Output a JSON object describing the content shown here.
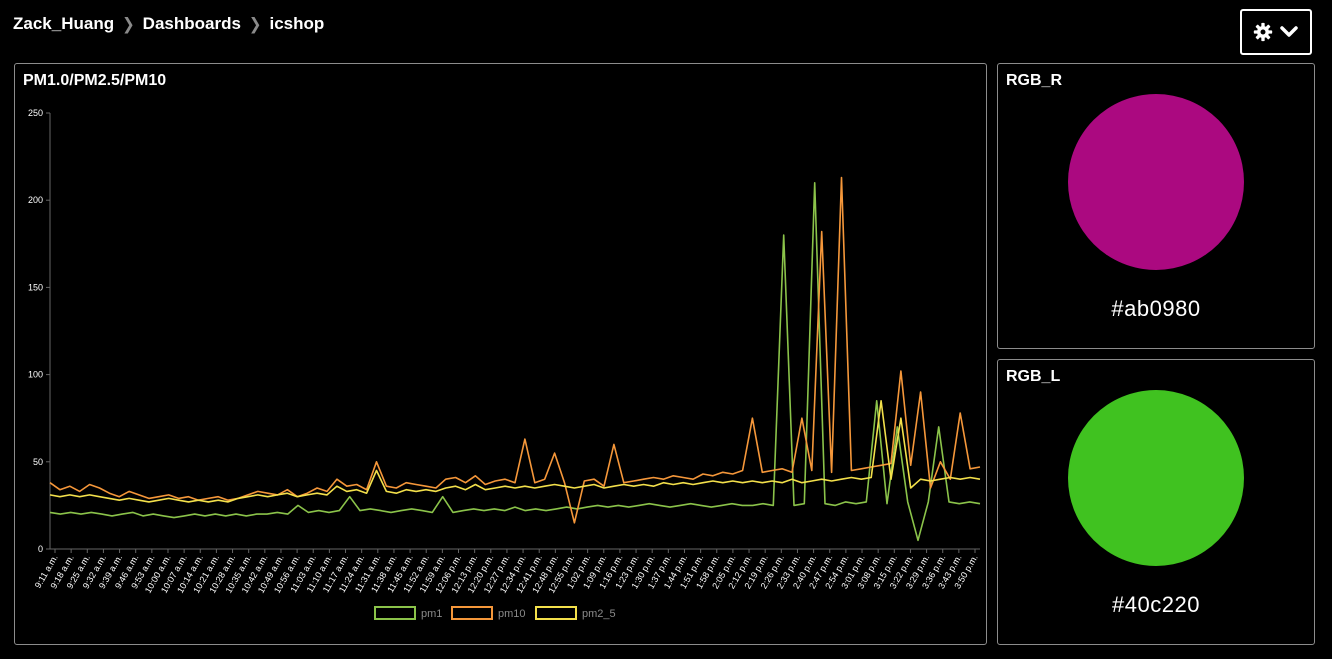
{
  "breadcrumb": {
    "items": [
      "Zack_Huang",
      "Dashboards",
      "icshop"
    ]
  },
  "header": {
    "settings_icon": "gear-icon",
    "dropdown_icon": "chevron-down-icon"
  },
  "widgets": {
    "chart": {
      "title": "PM1.0/PM2.5/PM10"
    },
    "rgb_r": {
      "title": "RGB_R",
      "value": "#ab0980",
      "color": "#ab0980"
    },
    "rgb_l": {
      "title": "RGB_L",
      "value": "#40c220",
      "color": "#40c220"
    }
  },
  "chart_data": {
    "type": "line",
    "title": "PM1.0/PM2.5/PM10",
    "ylim": [
      0,
      250
    ],
    "yticks": [
      0,
      50,
      100,
      150,
      200,
      250
    ],
    "grid": false,
    "legend_position": "bottom",
    "x_tick_labels": [
      "9:11 a.m.",
      "9:18 a.m.",
      "9:25 a.m.",
      "9:32 a.m.",
      "9:39 a.m.",
      "9:46 a.m.",
      "9:53 a.m.",
      "10:00 a.m.",
      "10:07 a.m.",
      "10:14 a.m.",
      "10:21 a.m.",
      "10:28 a.m.",
      "10:35 a.m.",
      "10:42 a.m.",
      "10:49 a.m.",
      "10:56 a.m.",
      "11:03 a.m.",
      "11:10 a.m.",
      "11:17 a.m.",
      "11:24 a.m.",
      "11:31 a.m.",
      "11:38 a.m.",
      "11:45 a.m.",
      "11:52 a.m.",
      "11:59 a.m.",
      "12:06 p.m.",
      "12:13 p.m.",
      "12:20 p.m.",
      "12:27 p.m.",
      "12:34 p.m.",
      "12:41 p.m.",
      "12:48 p.m.",
      "12:55 p.m.",
      "1:02 p.m.",
      "1:09 p.m.",
      "1:16 p.m.",
      "1:23 p.m.",
      "1:30 p.m.",
      "1:37 p.m.",
      "1:44 p.m.",
      "1:51 p.m.",
      "1:58 p.m.",
      "2:05 p.m.",
      "2:12 p.m.",
      "2:19 p.m.",
      "2:26 p.m.",
      "2:33 p.m.",
      "2:40 p.m.",
      "2:47 p.m.",
      "2:54 p.m.",
      "3:01 p.m.",
      "3:08 p.m.",
      "3:15 p.m.",
      "3:22 p.m.",
      "3:29 p.m.",
      "3:36 p.m.",
      "3:43 p.m.",
      "3:50 p.m."
    ],
    "series": [
      {
        "name": "pm1",
        "color": "#8bc34a",
        "values": [
          21,
          20,
          21,
          20,
          21,
          20,
          19,
          20,
          21,
          19,
          20,
          19,
          18,
          19,
          20,
          19,
          20,
          19,
          20,
          19,
          20,
          20,
          21,
          20,
          25,
          21,
          22,
          21,
          22,
          30,
          22,
          23,
          22,
          21,
          22,
          23,
          22,
          21,
          30,
          21,
          22,
          23,
          22,
          23,
          22,
          24,
          22,
          23,
          22,
          23,
          24,
          23,
          24,
          25,
          24,
          25,
          24,
          25,
          26,
          25,
          24,
          25,
          26,
          25,
          24,
          25,
          26,
          25,
          25,
          26,
          25,
          180,
          25,
          26,
          210,
          26,
          25,
          27,
          26,
          27,
          85,
          26,
          70,
          27,
          5,
          27,
          70,
          27,
          26,
          27,
          26
        ]
      },
      {
        "name": "pm10",
        "color": "#f5973a",
        "values": [
          38,
          34,
          36,
          33,
          37,
          35,
          32,
          30,
          33,
          31,
          29,
          30,
          31,
          29,
          30,
          28,
          29,
          30,
          28,
          29,
          31,
          33,
          32,
          31,
          34,
          30,
          32,
          35,
          33,
          40,
          36,
          37,
          34,
          50,
          36,
          35,
          38,
          37,
          36,
          35,
          40,
          41,
          38,
          42,
          37,
          39,
          40,
          38,
          63,
          38,
          40,
          55,
          38,
          15,
          39,
          40,
          36,
          60,
          38,
          39,
          40,
          41,
          40,
          42,
          41,
          40,
          43,
          42,
          44,
          43,
          45,
          75,
          44,
          45,
          46,
          44,
          75,
          45,
          182,
          44,
          213,
          45,
          46,
          47,
          48,
          49,
          102,
          48,
          90,
          35,
          50,
          40,
          78,
          46,
          47
        ]
      },
      {
        "name": "pm2_5",
        "color": "#f3e04b",
        "values": [
          31,
          30,
          31,
          30,
          31,
          30,
          29,
          28,
          29,
          28,
          27,
          28,
          29,
          28,
          27,
          28,
          27,
          28,
          27,
          29,
          30,
          31,
          30,
          31,
          32,
          30,
          31,
          32,
          31,
          36,
          33,
          34,
          32,
          45,
          33,
          32,
          34,
          33,
          34,
          33,
          35,
          36,
          34,
          37,
          34,
          35,
          36,
          35,
          36,
          35,
          36,
          37,
          36,
          35,
          36,
          37,
          35,
          36,
          37,
          36,
          37,
          36,
          38,
          37,
          38,
          37,
          38,
          39,
          38,
          39,
          38,
          39,
          38,
          39,
          38,
          40,
          38,
          39,
          40,
          39,
          40,
          41,
          40,
          41,
          85,
          40,
          75,
          35,
          40,
          39,
          40,
          41,
          40,
          41,
          40
        ]
      }
    ]
  }
}
